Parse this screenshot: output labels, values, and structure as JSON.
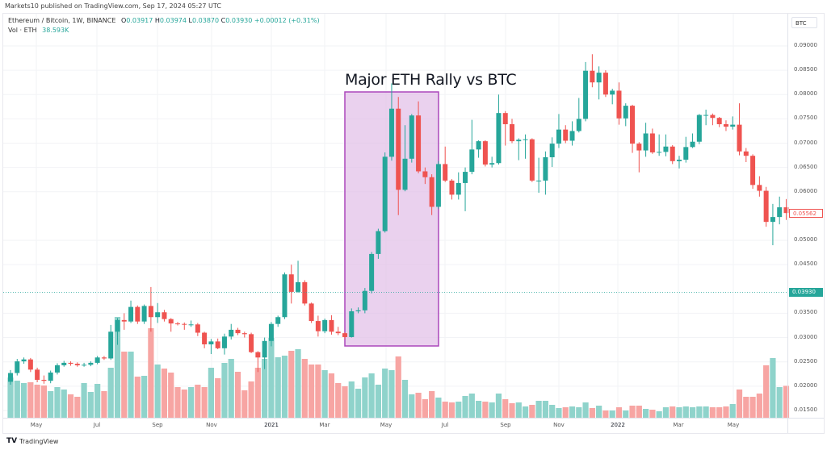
{
  "published": "Markets10 published on TradingView.com, Sep 17, 2024 05:27 UTC",
  "legend": {
    "symbol": "Ethereum / Bitcoin, 1W, BINANCE",
    "o_label": "O",
    "o": "0.03917",
    "h_label": "H",
    "h": "0.03974",
    "l_label": "L",
    "l": "0.03870",
    "c_label": "C",
    "c": "0.03930",
    "change": "+0.00012 (+0.31%)",
    "vol_label": "Vol · ETH",
    "vol": "38.593K"
  },
  "annotation": {
    "text": "Major ETH Rally vs BTC",
    "fill": "#e1bee7",
    "border": "#ab47bc"
  },
  "price_axis": {
    "unit": "BTC",
    "ticks": [
      "0.09000",
      "0.08500",
      "0.08000",
      "0.07500",
      "0.07000",
      "0.06500",
      "0.06000",
      "0.05000",
      "0.04500",
      "0.03500",
      "0.03000",
      "0.02500",
      "0.02000",
      "0.01500"
    ],
    "last_price": "0.03930",
    "live_price": "0.05562"
  },
  "time_axis": {
    "ticks": [
      "May",
      "Jul",
      "Sep",
      "Nov",
      "2021",
      "Mar",
      "May",
      "Jul",
      "Sep",
      "Nov",
      "2022",
      "Mar",
      "May"
    ]
  },
  "colors": {
    "up": "#26a69a",
    "down": "#ef5350",
    "up_vol": "#8fd3cb",
    "down_vol": "#f7a5a3"
  },
  "footer": {
    "brand": "TradingView",
    "logo": "TV"
  },
  "chart_data": {
    "type": "candlestick",
    "interval": "1W",
    "ylim": [
      0.015,
      0.09
    ],
    "volume_unit": "K ETH",
    "ohlc": [
      [
        0.0209,
        0.0233,
        0.0203,
        0.0227
      ],
      [
        0.0227,
        0.0256,
        0.0222,
        0.0251
      ],
      [
        0.0251,
        0.0259,
        0.0246,
        0.0255
      ],
      [
        0.0255,
        0.0258,
        0.0229,
        0.0234
      ],
      [
        0.0234,
        0.0238,
        0.0208,
        0.0213
      ],
      [
        0.0213,
        0.0222,
        0.0205,
        0.0211
      ],
      [
        0.0211,
        0.0232,
        0.0206,
        0.0228
      ],
      [
        0.0228,
        0.0247,
        0.0224,
        0.0243
      ],
      [
        0.0243,
        0.0252,
        0.024,
        0.0248
      ],
      [
        0.0248,
        0.0251,
        0.0242,
        0.0246
      ],
      [
        0.0246,
        0.0249,
        0.024,
        0.0243
      ],
      [
        0.0243,
        0.0248,
        0.024,
        0.0244
      ],
      [
        0.0244,
        0.0251,
        0.0241,
        0.0248
      ],
      [
        0.0248,
        0.0262,
        0.0245,
        0.0259
      ],
      [
        0.0259,
        0.0262,
        0.0254,
        0.0257
      ],
      [
        0.0257,
        0.0326,
        0.0254,
        0.0312
      ],
      [
        0.0312,
        0.034,
        0.0285,
        0.0336
      ],
      [
        0.0336,
        0.035,
        0.0316,
        0.0333
      ],
      [
        0.0333,
        0.0376,
        0.033,
        0.0363
      ],
      [
        0.0363,
        0.0366,
        0.0328,
        0.0333
      ],
      [
        0.0333,
        0.0368,
        0.0328,
        0.0365
      ],
      [
        0.0365,
        0.0404,
        0.0312,
        0.0342
      ],
      [
        0.0342,
        0.0371,
        0.033,
        0.0352
      ],
      [
        0.0352,
        0.0357,
        0.0333,
        0.0338
      ],
      [
        0.0338,
        0.034,
        0.0312,
        0.0329
      ],
      [
        0.0329,
        0.0332,
        0.0325,
        0.0328
      ],
      [
        0.0328,
        0.0331,
        0.0316,
        0.0327
      ],
      [
        0.0327,
        0.0335,
        0.0322,
        0.0327
      ],
      [
        0.0327,
        0.033,
        0.0303,
        0.031
      ],
      [
        0.031,
        0.0312,
        0.0278,
        0.0286
      ],
      [
        0.0286,
        0.0297,
        0.0266,
        0.0292
      ],
      [
        0.0292,
        0.0298,
        0.0276,
        0.0278
      ],
      [
        0.0278,
        0.0308,
        0.0265,
        0.0302
      ],
      [
        0.0302,
        0.0328,
        0.0296,
        0.0316
      ],
      [
        0.0316,
        0.032,
        0.0305,
        0.0309
      ],
      [
        0.0309,
        0.0312,
        0.03,
        0.0307
      ],
      [
        0.0307,
        0.031,
        0.0268,
        0.027
      ],
      [
        0.027,
        0.0272,
        0.0229,
        0.0259
      ],
      [
        0.0259,
        0.03,
        0.0235,
        0.0293
      ],
      [
        0.0293,
        0.0332,
        0.0282,
        0.0328
      ],
      [
        0.0328,
        0.0345,
        0.0322,
        0.0342
      ],
      [
        0.0342,
        0.0434,
        0.0338,
        0.043
      ],
      [
        0.043,
        0.045,
        0.037,
        0.0394
      ],
      [
        0.0394,
        0.0458,
        0.0392,
        0.0414
      ],
      [
        0.0414,
        0.0418,
        0.0366,
        0.037
      ],
      [
        0.037,
        0.0372,
        0.033,
        0.0334
      ],
      [
        0.0334,
        0.0345,
        0.0302,
        0.0313
      ],
      [
        0.0313,
        0.0339,
        0.0309,
        0.0336
      ],
      [
        0.0336,
        0.0346,
        0.0306,
        0.0312
      ],
      [
        0.0312,
        0.0322,
        0.0305,
        0.0309
      ],
      [
        0.0309,
        0.0311,
        0.0297,
        0.0301
      ],
      [
        0.0301,
        0.036,
        0.03,
        0.0354
      ],
      [
        0.0354,
        0.0362,
        0.035,
        0.0356
      ],
      [
        0.0356,
        0.0402,
        0.035,
        0.0396
      ],
      [
        0.0396,
        0.0476,
        0.0391,
        0.0472
      ],
      [
        0.0472,
        0.0524,
        0.0462,
        0.0519
      ],
      [
        0.0519,
        0.0681,
        0.0516,
        0.0672
      ],
      [
        0.0672,
        0.0823,
        0.0664,
        0.0771
      ],
      [
        0.0771,
        0.0795,
        0.0552,
        0.0604
      ],
      [
        0.0604,
        0.0737,
        0.0601,
        0.0668
      ],
      [
        0.0668,
        0.076,
        0.066,
        0.0757
      ],
      [
        0.0757,
        0.0786,
        0.0638,
        0.0642
      ],
      [
        0.0642,
        0.065,
        0.0616,
        0.063
      ],
      [
        0.063,
        0.0636,
        0.0552,
        0.0569
      ],
      [
        0.0569,
        0.0663,
        0.0565,
        0.0657
      ],
      [
        0.0657,
        0.0693,
        0.062,
        0.0623
      ],
      [
        0.0623,
        0.0626,
        0.0584,
        0.0594
      ],
      [
        0.0594,
        0.064,
        0.0584,
        0.0618
      ],
      [
        0.0618,
        0.065,
        0.056,
        0.0641
      ],
      [
        0.0641,
        0.0748,
        0.0636,
        0.0687
      ],
      [
        0.0687,
        0.0706,
        0.067,
        0.0704
      ],
      [
        0.0704,
        0.0706,
        0.0652,
        0.0656
      ],
      [
        0.0656,
        0.0672,
        0.065,
        0.0659
      ],
      [
        0.0659,
        0.08,
        0.0656,
        0.0762
      ],
      [
        0.0762,
        0.0766,
        0.0695,
        0.0739
      ],
      [
        0.0739,
        0.075,
        0.07,
        0.0704
      ],
      [
        0.0704,
        0.071,
        0.0665,
        0.0707
      ],
      [
        0.0707,
        0.0718,
        0.0668,
        0.0708
      ],
      [
        0.0708,
        0.071,
        0.062,
        0.0623
      ],
      [
        0.0623,
        0.067,
        0.0598,
        0.0623
      ],
      [
        0.0623,
        0.0683,
        0.0594,
        0.0671
      ],
      [
        0.0671,
        0.0712,
        0.0651,
        0.0699
      ],
      [
        0.0699,
        0.076,
        0.069,
        0.0728
      ],
      [
        0.0728,
        0.0737,
        0.07,
        0.0705
      ],
      [
        0.0705,
        0.0745,
        0.0695,
        0.0725
      ],
      [
        0.0725,
        0.0793,
        0.0722,
        0.075
      ],
      [
        0.075,
        0.0867,
        0.0745,
        0.0849
      ],
      [
        0.0849,
        0.0883,
        0.0815,
        0.0825
      ],
      [
        0.0825,
        0.0858,
        0.079,
        0.0845
      ],
      [
        0.0845,
        0.085,
        0.0795,
        0.08
      ],
      [
        0.08,
        0.0812,
        0.078,
        0.0808
      ],
      [
        0.0808,
        0.0825,
        0.0738,
        0.0751
      ],
      [
        0.0751,
        0.0782,
        0.0735,
        0.0777
      ],
      [
        0.0777,
        0.0779,
        0.068,
        0.0699
      ],
      [
        0.0699,
        0.0702,
        0.064,
        0.0685
      ],
      [
        0.0685,
        0.0742,
        0.0672,
        0.072
      ],
      [
        0.072,
        0.073,
        0.0678,
        0.0681
      ],
      [
        0.0681,
        0.0718,
        0.0674,
        0.0682
      ],
      [
        0.0682,
        0.0718,
        0.0673,
        0.0693
      ],
      [
        0.0693,
        0.0696,
        0.0657,
        0.0663
      ],
      [
        0.0663,
        0.0674,
        0.0648,
        0.0666
      ],
      [
        0.0666,
        0.0713,
        0.066,
        0.0692
      ],
      [
        0.0692,
        0.072,
        0.069,
        0.0703
      ],
      [
        0.0703,
        0.076,
        0.0698,
        0.0758
      ],
      [
        0.0758,
        0.0769,
        0.0737,
        0.0758
      ],
      [
        0.0758,
        0.0761,
        0.0737,
        0.0752
      ],
      [
        0.0752,
        0.0754,
        0.0733,
        0.0739
      ],
      [
        0.0739,
        0.0747,
        0.0725,
        0.0734
      ],
      [
        0.0734,
        0.0755,
        0.0728,
        0.0738
      ],
      [
        0.0738,
        0.0782,
        0.0675,
        0.0683
      ],
      [
        0.0683,
        0.069,
        0.0661,
        0.0674
      ],
      [
        0.0674,
        0.0677,
        0.0606,
        0.0614
      ],
      [
        0.0614,
        0.0632,
        0.059,
        0.0602
      ],
      [
        0.0602,
        0.061,
        0.0528,
        0.0538
      ],
      [
        0.0538,
        0.0575,
        0.049,
        0.0548
      ],
      [
        0.0548,
        0.059,
        0.0533,
        0.0568
      ],
      [
        0.0568,
        0.0585,
        0.0542,
        0.05562
      ]
    ],
    "volume": [
      50,
      46,
      43,
      44,
      41,
      40,
      33,
      38,
      35,
      29,
      26,
      43,
      32,
      42,
      33,
      62,
      125,
      82,
      82,
      51,
      52,
      111,
      66,
      61,
      56,
      38,
      35,
      38,
      41,
      38,
      62,
      49,
      68,
      73,
      57,
      34,
      45,
      62,
      73,
      99,
      75,
      77,
      83,
      85,
      73,
      66,
      66,
      59,
      55,
      43,
      39,
      45,
      36,
      50,
      55,
      41,
      61,
      59,
      76,
      47,
      29,
      31,
      23,
      33,
      25,
      20,
      19,
      20,
      27,
      30,
      21,
      20,
      19,
      30,
      23,
      18,
      19,
      14,
      16,
      21,
      21,
      16,
      12,
      13,
      14,
      13,
      19,
      12,
      15,
      9,
      9,
      13,
      9,
      15,
      15,
      11,
      10,
      8,
      13,
      14,
      13,
      14,
      13,
      14,
      14,
      13,
      13,
      14,
      17,
      35,
      26,
      26,
      30,
      65,
      74,
      38,
      39.593
    ]
  }
}
